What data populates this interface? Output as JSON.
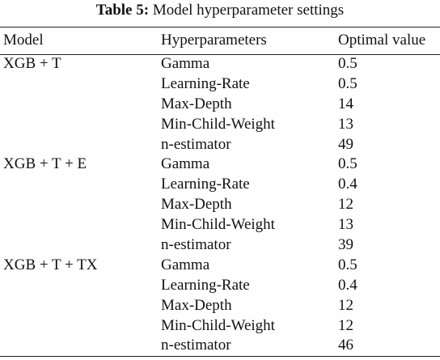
{
  "caption": {
    "label": "Table 5:",
    "text": "Model hyperparameter settings"
  },
  "table": {
    "columns": [
      "Model",
      "Hyperparameters",
      "Optimal value"
    ],
    "rows": [
      [
        "XGB + T",
        "Gamma",
        "0.5"
      ],
      [
        "",
        "Learning-Rate",
        "0.5"
      ],
      [
        "",
        "Max-Depth",
        "14"
      ],
      [
        "",
        "Min-Child-Weight",
        "13"
      ],
      [
        "",
        "n-estimator",
        "49"
      ],
      [
        "XGB + T + E",
        "Gamma",
        "0.5"
      ],
      [
        "",
        "Learning-Rate",
        "0.4"
      ],
      [
        "",
        "Max-Depth",
        "12"
      ],
      [
        "",
        "Min-Child-Weight",
        "13"
      ],
      [
        "",
        "n-estimator",
        "39"
      ],
      [
        "XGB + T + TX",
        "Gamma",
        "0.5"
      ],
      [
        "",
        "Learning-Rate",
        "0.4"
      ],
      [
        "",
        "Max-Depth",
        "12"
      ],
      [
        "",
        "Min-Child-Weight",
        "12"
      ],
      [
        "",
        "n-estimator",
        "46"
      ]
    ]
  }
}
